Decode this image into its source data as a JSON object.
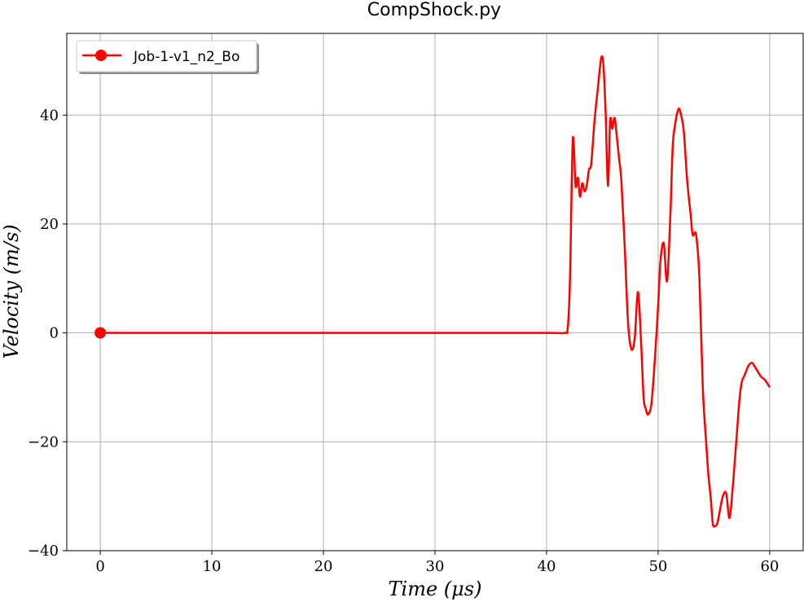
{
  "chart_data": {
    "type": "line",
    "title": "CompShock.py",
    "xlabel": "Time (μs)",
    "ylabel": "Velocity (m/s)",
    "xlim": [
      -3,
      63
    ],
    "ylim": [
      -40,
      55
    ],
    "x_ticks": [
      0,
      10,
      20,
      30,
      40,
      50,
      60
    ],
    "y_ticks": [
      -40,
      -20,
      0,
      20,
      40
    ],
    "x_tick_labels": [
      "0",
      "10",
      "20",
      "30",
      "40",
      "50",
      "60"
    ],
    "y_tick_labels": [
      "−40",
      "−20",
      "0",
      "20",
      "40"
    ],
    "grid": true,
    "legend_position": "top-left",
    "series": [
      {
        "name": "Job-1-v1_n2_Bo",
        "color": "#ff0000",
        "marker": "circle",
        "marker_points": [
          [
            0,
            0
          ]
        ],
        "x": [
          0,
          10,
          20,
          30,
          40,
          41.6,
          41.9,
          42.1,
          42.35,
          42.6,
          42.8,
          43.0,
          43.2,
          43.4,
          43.6,
          43.8,
          44.0,
          44.3,
          44.6,
          44.9,
          45.1,
          45.3,
          45.5,
          45.7,
          45.9,
          46.1,
          46.3,
          46.5,
          46.7,
          47.0,
          47.3,
          47.6,
          47.9,
          48.2,
          48.5,
          48.7,
          48.9,
          49.1,
          49.4,
          49.7,
          50.0,
          50.2,
          50.5,
          50.8,
          51.1,
          51.3,
          51.5,
          51.8,
          52.0,
          52.3,
          52.6,
          52.9,
          53.1,
          53.4,
          53.7,
          54.0,
          54.3,
          54.5,
          54.7,
          54.9,
          55.1,
          55.3,
          55.5,
          55.8,
          56.1,
          56.4,
          56.7,
          57.0,
          57.3,
          57.5,
          57.7,
          57.9,
          58.1,
          58.4,
          58.6,
          58.9,
          59.2,
          59.5,
          59.7,
          60.0
        ],
        "y": [
          0,
          0,
          0,
          0,
          0,
          0,
          1,
          10,
          35.5,
          27,
          28.5,
          25,
          27.5,
          26,
          27,
          30,
          31,
          39,
          45,
          50.5,
          49,
          40,
          27,
          39,
          37.5,
          39.5,
          36,
          32,
          28,
          16,
          2,
          -3,
          -1,
          7.5,
          -3,
          -12,
          -14,
          -15,
          -13,
          -5,
          5,
          13,
          16.5,
          9.5,
          22,
          34,
          38,
          41,
          40.5,
          37,
          28,
          22,
          18,
          18,
          10,
          -10,
          -20,
          -26,
          -30,
          -35,
          -35.5,
          -35,
          -33,
          -30,
          -29.5,
          -34,
          -28,
          -20,
          -12,
          -9,
          -8,
          -7,
          -6,
          -5.5,
          -6,
          -7,
          -8,
          -8.5,
          -9,
          -10
        ]
      }
    ]
  }
}
